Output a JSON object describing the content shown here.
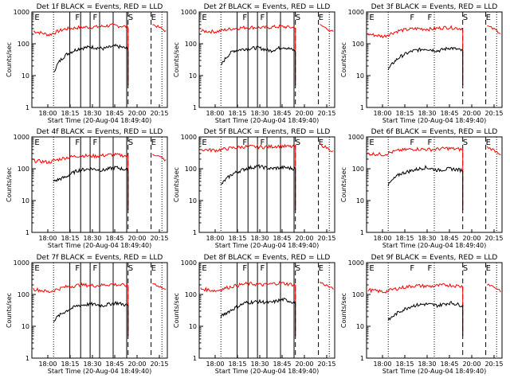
{
  "figure": {
    "x_axis": {
      "label": "Start Time (20-Aug-04 18:49:40)",
      "ticks": [
        "18:00",
        "18:15",
        "18:30",
        "18:45",
        "20:00",
        "20:15"
      ]
    },
    "y_axis": {
      "label": "Counts/sec",
      "ticks": [
        "1",
        "10",
        "100",
        "1000"
      ],
      "scale": "log",
      "range": [
        1,
        1000
      ]
    },
    "colors": {
      "events": "#000000",
      "lld": "#ff0000",
      "markers": "#000000"
    },
    "marker_letters": [
      "E",
      "F",
      "F",
      "S",
      "E"
    ]
  },
  "chart_data": [
    {
      "type": "line",
      "title": "Det 1f BLACK = Events, RED = LLD",
      "ylabel": "Counts/sec",
      "xlabel": "Start Time (20-Aug-04 18:49:40)",
      "yscale": "log",
      "series": [
        {
          "values": [
            250,
            190,
            290,
            330,
            340,
            380,
            340,
            5
          ]
        },
        {
          "values": [
            12,
            45,
            70,
            80,
            70,
            85,
            70,
            5
          ]
        }
      ]
    },
    {
      "type": "line",
      "title": "Det 2f BLACK = Events, RED = LLD",
      "ylabel": "Counts/sec",
      "xlabel": "Start Time (20-Aug-04 18:49:40)",
      "yscale": "log",
      "series": [
        {
          "values": [
            250,
            240,
            300,
            330,
            320,
            350,
            320,
            5
          ]
        },
        {
          "values": [
            20,
            60,
            70,
            75,
            60,
            80,
            60,
            5
          ]
        }
      ]
    },
    {
      "type": "line",
      "title": "Det 3f BLACK = Events, RED = LLD",
      "ylabel": "Counts/sec",
      "xlabel": "Start Time (20-Aug-04 18:49:40)",
      "yscale": "log",
      "series": [
        {
          "values": [
            200,
            170,
            260,
            300,
            290,
            330,
            300,
            5
          ]
        },
        {
          "values": [
            15,
            40,
            60,
            70,
            60,
            75,
            60,
            5
          ]
        }
      ]
    },
    {
      "type": "line",
      "title": "Det 4f BLACK = Events, RED = LLD",
      "ylabel": "Counts/sec",
      "xlabel": "Start Time (20-Aug-04 18:49:40)",
      "yscale": "log",
      "series": [
        {
          "values": [
            180,
            160,
            220,
            260,
            250,
            280,
            250,
            5
          ]
        },
        {
          "values": [
            40,
            55,
            90,
            100,
            90,
            110,
            90,
            5
          ]
        }
      ]
    },
    {
      "type": "line",
      "title": "Det 5f BLACK = Events, RED = LLD",
      "ylabel": "Counts/sec",
      "xlabel": "Start Time (20-Aug-04 18:49:40)",
      "yscale": "log",
      "series": [
        {
          "values": [
            400,
            380,
            450,
            500,
            480,
            520,
            480,
            5
          ]
        },
        {
          "values": [
            30,
            70,
            100,
            120,
            100,
            110,
            100,
            5
          ]
        }
      ]
    },
    {
      "type": "line",
      "title": "Det 6f BLACK = Events, RED = LLD",
      "ylabel": "Counts/sec",
      "xlabel": "Start Time (20-Aug-04 18:49:40)",
      "yscale": "log",
      "series": [
        {
          "values": [
            300,
            280,
            380,
            420,
            400,
            440,
            400,
            5
          ]
        },
        {
          "values": [
            30,
            70,
            90,
            110,
            90,
            100,
            90,
            5
          ]
        }
      ]
    },
    {
      "type": "line",
      "title": "Det 7f BLACK = Events, RED = LLD",
      "ylabel": "Counts/sec",
      "xlabel": "Start Time (20-Aug-04 18:49:40)",
      "yscale": "log",
      "series": [
        {
          "values": [
            150,
            120,
            170,
            200,
            190,
            210,
            190,
            5
          ]
        },
        {
          "values": [
            15,
            30,
            45,
            50,
            45,
            55,
            45,
            5
          ]
        }
      ]
    },
    {
      "type": "line",
      "title": "Det 8f BLACK = Events, RED = LLD",
      "ylabel": "Counts/sec",
      "xlabel": "Start Time (20-Aug-04 18:49:40)",
      "yscale": "log",
      "series": [
        {
          "values": [
            150,
            130,
            180,
            220,
            200,
            230,
            200,
            5
          ]
        },
        {
          "values": [
            20,
            35,
            55,
            60,
            55,
            70,
            55,
            5
          ]
        }
      ]
    },
    {
      "type": "line",
      "title": "Det 9f BLACK = Events, RED = LLD",
      "ylabel": "Counts/sec",
      "xlabel": "Start Time (20-Aug-04 18:49:40)",
      "yscale": "log",
      "series": [
        {
          "values": [
            140,
            120,
            160,
            190,
            180,
            200,
            180,
            5
          ]
        },
        {
          "values": [
            15,
            30,
            45,
            50,
            45,
            55,
            45,
            5
          ]
        }
      ]
    }
  ]
}
